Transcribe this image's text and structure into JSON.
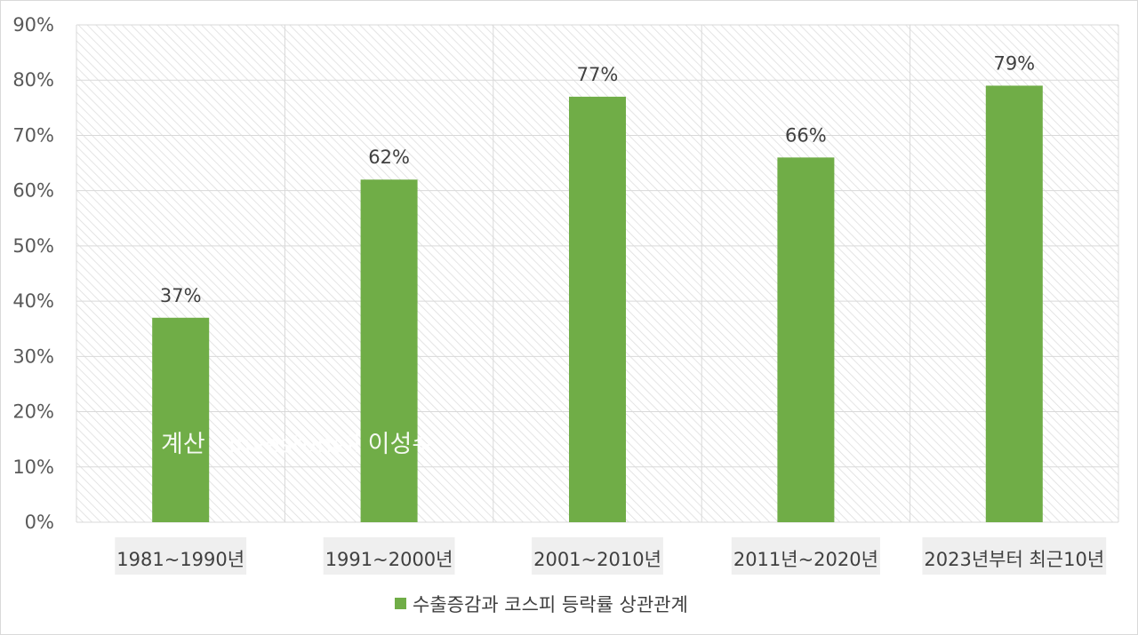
{
  "chart_data": {
    "type": "bar",
    "categories": [
      "1981~1990년",
      "1991~2000년",
      "2001~2010년",
      "2011년~2020년",
      "2023년부터 최근10년"
    ],
    "series": [
      {
        "name": "수출증감과 코스피 등락률 상관관계",
        "values": [
          37,
          62,
          77,
          66,
          79
        ],
        "color": "#70ad47"
      }
    ],
    "data_labels": [
      "37%",
      "62%",
      "77%",
      "66%",
      "79%"
    ],
    "ylim": [
      0,
      90
    ],
    "yticks": [
      0,
      10,
      20,
      30,
      40,
      50,
      60,
      70,
      80,
      90
    ],
    "ytick_labels": [
      "0%",
      "10%",
      "20%",
      "30%",
      "40%",
      "50%",
      "60%",
      "70%",
      "80%",
      "90%"
    ],
    "grid": true,
    "legend_position": "bottom",
    "plot_background": "hatched",
    "watermark": "계산 : Investuneil 이성수"
  }
}
